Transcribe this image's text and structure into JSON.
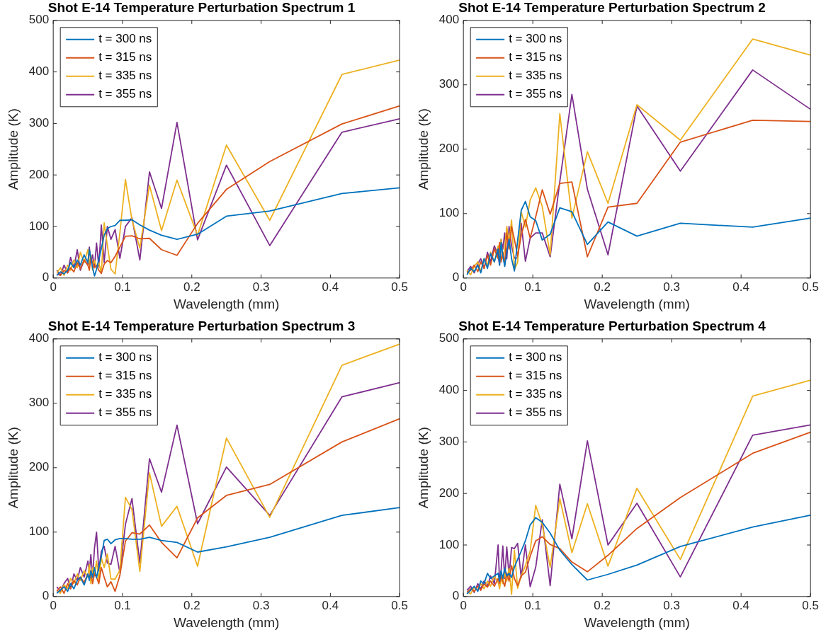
{
  "chart_data": [
    {
      "type": "line",
      "title": "Shot E-14 Temperature Perturbation Spectrum 1",
      "xlabel": "Wavelength (mm)",
      "ylabel": "Amplitude (K)",
      "legend": "top left",
      "xlim": [
        0,
        0.5
      ],
      "xticks": [
        0,
        0.1,
        0.2,
        0.3,
        0.4,
        0.5
      ],
      "ylim": [
        0,
        500
      ],
      "yticks": [
        0,
        100,
        200,
        300,
        400,
        500
      ],
      "x": [
        0.0052,
        0.0104,
        0.0156,
        0.0208,
        0.025,
        0.0298,
        0.0347,
        0.0391,
        0.0446,
        0.05,
        0.0521,
        0.0543,
        0.0568,
        0.0595,
        0.0625,
        0.0658,
        0.0694,
        0.0735,
        0.0781,
        0.0833,
        0.0893,
        0.0962,
        0.1042,
        0.1136,
        0.125,
        0.1389,
        0.1563,
        0.1786,
        0.2083,
        0.25,
        0.3125,
        0.4167,
        0.5
      ],
      "series": [
        {
          "name": "t = 300 ns",
          "color": "#0072bd",
          "values": [
            5,
            12,
            8,
            15,
            30,
            20,
            35,
            25,
            45,
            30,
            55,
            40,
            20,
            4,
            17,
            37,
            57,
            83,
            96,
            100,
            102,
            112,
            112,
            113,
            103,
            93,
            83,
            75,
            85,
            120,
            130,
            164,
            175
          ]
        },
        {
          "name": "t = 315 ns",
          "color": "#d95319",
          "values": [
            8,
            5,
            15,
            10,
            20,
            12,
            30,
            18,
            35,
            25,
            15,
            40,
            30,
            20,
            25,
            15,
            9,
            27,
            34,
            30,
            42,
            60,
            81,
            82,
            76,
            77,
            55,
            44,
            106,
            172,
            226,
            299,
            334
          ]
        },
        {
          "name": "t = 335 ns",
          "color": "#edb120",
          "values": [
            10,
            20,
            5,
            25,
            15,
            35,
            20,
            50,
            30,
            55,
            25,
            45,
            15,
            35,
            20,
            30,
            9,
            107,
            63,
            17,
            8,
            88,
            191,
            113,
            58,
            180,
            92,
            190,
            83,
            258,
            112,
            395,
            423
          ]
        },
        {
          "name": "t = 355 ns",
          "color": "#7e2f8e",
          "values": [
            15,
            5,
            25,
            10,
            40,
            20,
            55,
            15,
            35,
            25,
            60,
            30,
            45,
            20,
            68,
            22,
            103,
            30,
            100,
            75,
            94,
            38,
            100,
            117,
            35,
            206,
            135,
            302,
            74,
            219,
            63,
            283,
            309
          ]
        }
      ]
    },
    {
      "type": "line",
      "title": "Shot E-14 Temperature Perturbation Spectrum 2",
      "xlabel": "Wavelength (mm)",
      "ylabel": "Amplitude (K)",
      "legend": "top left",
      "xlim": [
        0,
        0.5
      ],
      "xticks": [
        0,
        0.1,
        0.2,
        0.3,
        0.4,
        0.5
      ],
      "ylim": [
        0,
        400
      ],
      "yticks": [
        0,
        100,
        200,
        300,
        400
      ],
      "x": [
        0.0052,
        0.0104,
        0.0156,
        0.0208,
        0.025,
        0.0298,
        0.0347,
        0.0391,
        0.0446,
        0.05,
        0.0521,
        0.0543,
        0.0568,
        0.0595,
        0.0625,
        0.0658,
        0.0694,
        0.0735,
        0.0781,
        0.0833,
        0.0893,
        0.0962,
        0.1042,
        0.1136,
        0.125,
        0.1389,
        0.1563,
        0.1786,
        0.2083,
        0.25,
        0.3125,
        0.4167,
        0.5
      ],
      "series": [
        {
          "name": "t = 300 ns",
          "color": "#0072bd",
          "values": [
            5,
            15,
            10,
            20,
            8,
            30,
            15,
            38,
            25,
            45,
            20,
            55,
            35,
            18,
            40,
            60,
            30,
            11,
            58,
            105,
            119,
            95,
            89,
            59,
            68,
            109,
            103,
            52,
            87,
            65,
            85,
            79,
            93
          ]
        },
        {
          "name": "t = 315 ns",
          "color": "#d95319",
          "values": [
            8,
            12,
            20,
            10,
            25,
            15,
            35,
            20,
            45,
            30,
            55,
            25,
            40,
            20,
            70,
            45,
            80,
            60,
            34,
            66,
            91,
            62,
            95,
            137,
            99,
            147,
            149,
            33,
            110,
            116,
            211,
            245,
            243
          ]
        },
        {
          "name": "t = 335 ns",
          "color": "#edb120",
          "values": [
            12,
            5,
            18,
            25,
            10,
            30,
            20,
            40,
            25,
            50,
            35,
            60,
            30,
            45,
            80,
            55,
            90,
            13,
            24,
            103,
            79,
            121,
            140,
            111,
            36,
            255,
            93,
            196,
            116,
            269,
            214,
            371,
            346
          ]
        },
        {
          "name": "t = 355 ns",
          "color": "#7e2f8e",
          "values": [
            10,
            18,
            8,
            22,
            30,
            15,
            40,
            25,
            50,
            35,
            20,
            60,
            45,
            70,
            30,
            80,
            50,
            31,
            31,
            85,
            26,
            62,
            70,
            70,
            33,
            150,
            285,
            138,
            36,
            267,
            166,
            323,
            262
          ]
        }
      ]
    },
    {
      "type": "line",
      "title": "Shot E-14 Temperature Perturbation Spectrum 3",
      "xlabel": "Wavelength (mm)",
      "ylabel": "Amplitude (K)",
      "legend": "top left",
      "xlim": [
        0,
        0.5
      ],
      "xticks": [
        0,
        0.1,
        0.2,
        0.3,
        0.4,
        0.5
      ],
      "ylim": [
        0,
        400
      ],
      "yticks": [
        0,
        100,
        200,
        300,
        400
      ],
      "x": [
        0.0052,
        0.0104,
        0.0156,
        0.0208,
        0.025,
        0.0298,
        0.0347,
        0.0391,
        0.0446,
        0.05,
        0.0521,
        0.0543,
        0.0568,
        0.0595,
        0.0625,
        0.0658,
        0.0694,
        0.0735,
        0.0781,
        0.0833,
        0.0893,
        0.0962,
        0.1042,
        0.1136,
        0.125,
        0.1389,
        0.1563,
        0.1786,
        0.2083,
        0.25,
        0.3125,
        0.4167,
        0.5
      ],
      "series": [
        {
          "name": "t = 300 ns",
          "color": "#0072bd",
          "values": [
            5,
            10,
            15,
            8,
            20,
            12,
            25,
            30,
            18,
            35,
            25,
            40,
            30,
            45,
            29,
            45,
            62,
            87,
            89,
            82,
            88,
            90,
            90,
            89,
            89,
            92,
            87,
            84,
            69,
            77,
            92,
            126,
            138
          ]
        },
        {
          "name": "t = 315 ns",
          "color": "#d95319",
          "values": [
            8,
            15,
            5,
            20,
            12,
            25,
            18,
            30,
            22,
            35,
            28,
            40,
            20,
            35,
            30,
            20,
            45,
            30,
            15,
            23,
            8,
            33,
            86,
            99,
            97,
            111,
            84,
            60,
            122,
            157,
            174,
            240,
            276
          ]
        },
        {
          "name": "t = 335 ns",
          "color": "#edb120",
          "values": [
            10,
            5,
            18,
            12,
            28,
            20,
            35,
            25,
            40,
            30,
            50,
            20,
            45,
            35,
            55,
            25,
            60,
            45,
            66,
            27,
            27,
            41,
            154,
            135,
            39,
            192,
            109,
            140,
            47,
            246,
            123,
            359,
            392
          ]
        },
        {
          "name": "t = 355 ns",
          "color": "#7e2f8e",
          "values": [
            15,
            8,
            20,
            28,
            12,
            35,
            25,
            45,
            30,
            55,
            40,
            65,
            30,
            75,
            100,
            40,
            70,
            78,
            52,
            50,
            78,
            37,
            112,
            152,
            52,
            214,
            162,
            266,
            113,
            201,
            126,
            310,
            332
          ]
        }
      ]
    },
    {
      "type": "line",
      "title": "Shot E-14 Temperature Perturbation Spectrum 4",
      "xlabel": "Wavelength (mm)",
      "ylabel": "Amplitude (K)",
      "legend": "top left",
      "xlim": [
        0,
        0.5
      ],
      "xticks": [
        0,
        0.1,
        0.2,
        0.3,
        0.4,
        0.5
      ],
      "ylim": [
        0,
        500
      ],
      "yticks": [
        0,
        100,
        200,
        300,
        400,
        500
      ],
      "x": [
        0.0052,
        0.0104,
        0.0156,
        0.0208,
        0.025,
        0.0298,
        0.0347,
        0.0391,
        0.0446,
        0.05,
        0.0521,
        0.0543,
        0.0568,
        0.0595,
        0.0625,
        0.0658,
        0.0694,
        0.0735,
        0.0781,
        0.0833,
        0.0893,
        0.0962,
        0.1042,
        0.1136,
        0.125,
        0.1389,
        0.1563,
        0.1786,
        0.2083,
        0.25,
        0.3125,
        0.4167,
        0.5
      ],
      "series": [
        {
          "name": "t = 300 ns",
          "color": "#0072bd",
          "values": [
            5,
            12,
            20,
            10,
            30,
            25,
            45,
            35,
            40,
            45,
            30,
            50,
            35,
            55,
            40,
            45,
            37,
            57,
            72,
            88,
            108,
            139,
            153,
            144,
            123,
            90,
            62,
            32,
            43,
            61,
            97,
            135,
            158
          ]
        },
        {
          "name": "t = 315 ns",
          "color": "#d95319",
          "values": [
            8,
            15,
            10,
            20,
            12,
            25,
            18,
            30,
            20,
            35,
            25,
            40,
            30,
            20,
            45,
            30,
            60,
            35,
            21,
            40,
            47,
            78,
            108,
            116,
            101,
            93,
            67,
            48,
            80,
            132,
            192,
            278,
            319
          ]
        },
        {
          "name": "t = 335 ns",
          "color": "#edb120",
          "values": [
            10,
            5,
            18,
            12,
            25,
            15,
            30,
            20,
            40,
            28,
            15,
            35,
            25,
            45,
            30,
            55,
            4,
            90,
            16,
            40,
            60,
            88,
            177,
            139,
            57,
            190,
            85,
            180,
            59,
            210,
            72,
            389,
            420
          ]
        },
        {
          "name": "t = 355 ns",
          "color": "#7e2f8e",
          "values": [
            12,
            20,
            8,
            25,
            15,
            30,
            20,
            40,
            25,
            100,
            30,
            50,
            98,
            35,
            96,
            40,
            95,
            93,
            103,
            37,
            100,
            19,
            57,
            149,
            21,
            218,
            112,
            302,
            100,
            181,
            38,
            313,
            333
          ]
        }
      ]
    }
  ]
}
